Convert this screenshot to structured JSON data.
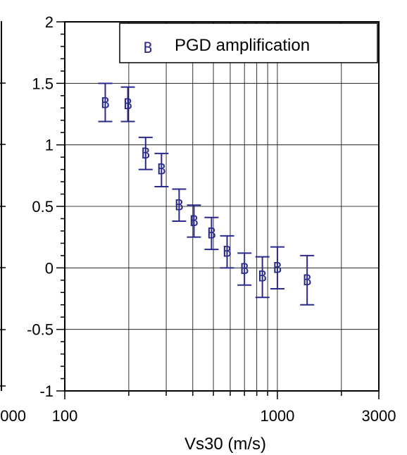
{
  "colors": {
    "series": "#2a2a8c",
    "axis": "#000000",
    "grid": "#000000"
  },
  "left_panel_fragment": {
    "tick_label": "000"
  },
  "chart_data": {
    "type": "scatter",
    "xscale": "log",
    "xlim": [
      100,
      3000
    ],
    "ylim": [
      -1,
      2
    ],
    "xlabel": "Vs30 (m/s)",
    "ylabel": "",
    "x_tick_labels": [
      {
        "value": 100,
        "label": "100"
      },
      {
        "value": 1000,
        "label": "1000"
      },
      {
        "value": 3000,
        "label": "3000"
      }
    ],
    "y_tick_labels": [
      {
        "value": 2,
        "label": "2"
      },
      {
        "value": 1.5,
        "label": "1.5"
      },
      {
        "value": 1,
        "label": "1"
      },
      {
        "value": 0.5,
        "label": "0.5"
      },
      {
        "value": 0,
        "label": "0"
      },
      {
        "value": -0.5,
        "label": "-0.5"
      },
      {
        "value": -1,
        "label": "-1"
      }
    ],
    "grid": true,
    "legend": {
      "placement": "top-right",
      "marker": "B",
      "label": "PGD amplification"
    },
    "series": [
      {
        "name": "PGD amplification",
        "marker": "B",
        "points": [
          {
            "x": 155,
            "y": 1.34,
            "ylow": 1.19,
            "yhigh": 1.5
          },
          {
            "x": 198,
            "y": 1.33,
            "ylow": 1.19,
            "yhigh": 1.47
          },
          {
            "x": 240,
            "y": 0.93,
            "ylow": 0.8,
            "yhigh": 1.06
          },
          {
            "x": 285,
            "y": 0.8,
            "ylow": 0.66,
            "yhigh": 0.93
          },
          {
            "x": 345,
            "y": 0.51,
            "ylow": 0.38,
            "yhigh": 0.64
          },
          {
            "x": 405,
            "y": 0.38,
            "ylow": 0.25,
            "yhigh": 0.51
          },
          {
            "x": 490,
            "y": 0.28,
            "ylow": 0.15,
            "yhigh": 0.41
          },
          {
            "x": 580,
            "y": 0.13,
            "ylow": 0.0,
            "yhigh": 0.26
          },
          {
            "x": 700,
            "y": -0.01,
            "ylow": -0.14,
            "yhigh": 0.12
          },
          {
            "x": 850,
            "y": -0.07,
            "ylow": -0.24,
            "yhigh": 0.09
          },
          {
            "x": 1000,
            "y": 0.0,
            "ylow": -0.17,
            "yhigh": 0.17
          },
          {
            "x": 1380,
            "y": -0.1,
            "ylow": -0.3,
            "yhigh": 0.1
          }
        ]
      }
    ]
  }
}
